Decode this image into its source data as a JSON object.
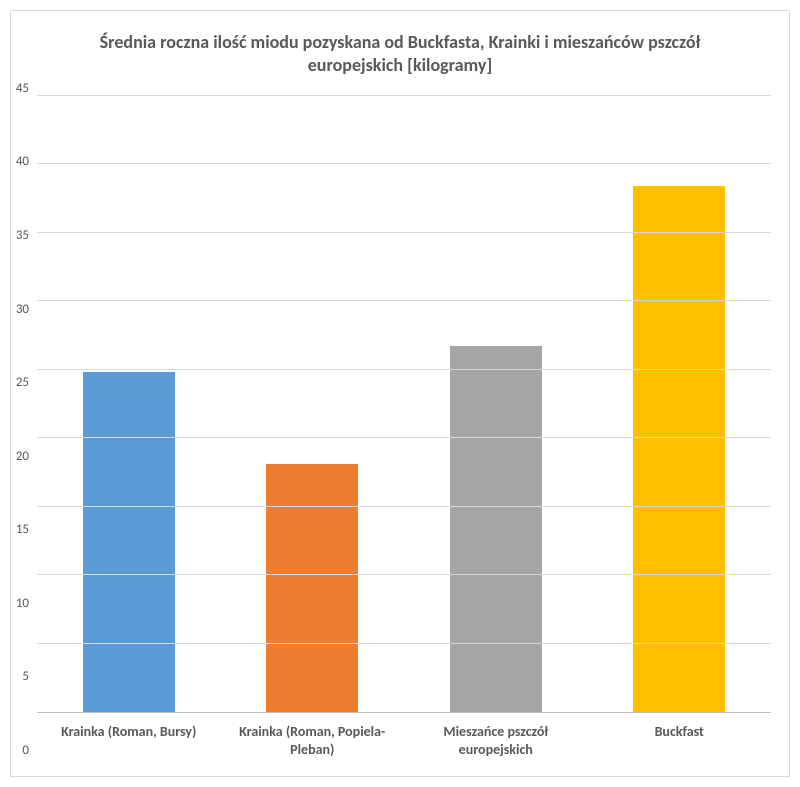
{
  "chart": {
    "type": "bar",
    "title": "Średnia roczna ilość miodu pozyskana od Buckfasta, Krainki i mieszańców pszczół europejskich [kilogramy]",
    "title_fontsize": 18,
    "title_color": "#595959",
    "categories": [
      "Krainka (Roman, Bursy)",
      "Krainka (Roman, Popiela-Pleban)",
      "Mieszańce pszczół europejskich",
      "Buckfast"
    ],
    "values": [
      24.8,
      18.1,
      26.7,
      38.4
    ],
    "bar_colors": [
      "#5b9bd5",
      "#ed7d31",
      "#a5a5a5",
      "#ffc000"
    ],
    "ylim": [
      0,
      45
    ],
    "ytick_step": 5,
    "yticks": [
      0,
      5,
      10,
      15,
      20,
      25,
      30,
      35,
      40,
      45
    ],
    "tick_color": "#595959",
    "tick_fontsize": 13,
    "xlabel_fontsize": 14,
    "xlabel_color": "#595959",
    "grid_color": "#d9d9d9",
    "axis_line_color": "#bfbfbf",
    "background_color": "#ffffff",
    "bar_width": 0.5,
    "border_color": "#d9d9d9"
  }
}
